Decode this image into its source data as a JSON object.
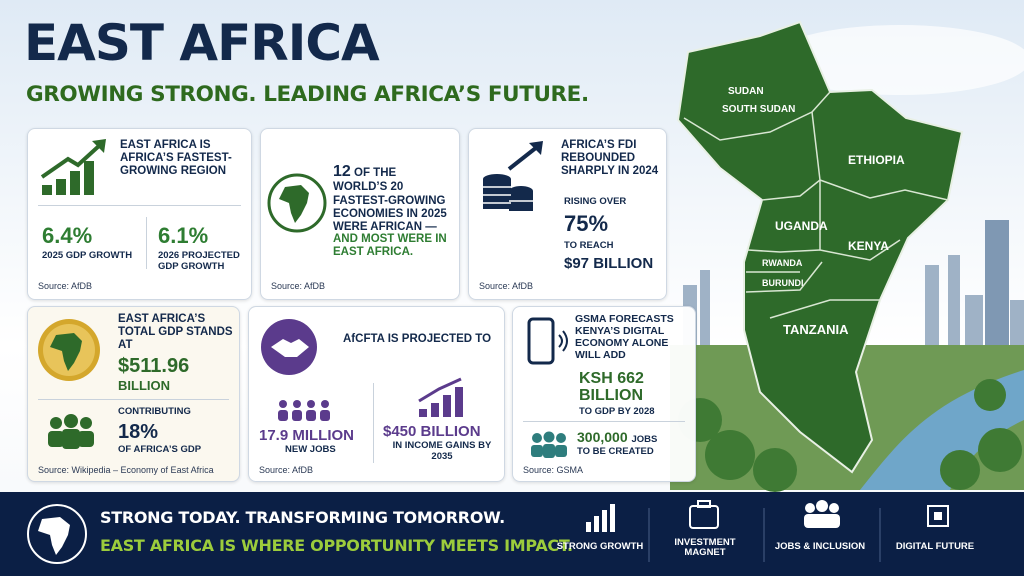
{
  "header": {
    "title": "EAST AFRICA",
    "subtitle": "GROWING STRONG. LEADING AFRICA’S FUTURE."
  },
  "cards": [
    {
      "heading": "EAST AFRICA IS AFRICA’S FASTEST-GROWING REGION",
      "stats": [
        {
          "value": "6.4%",
          "label": "2025 GDP GROWTH"
        },
        {
          "value": "6.1%",
          "label": "2026 PROJECTED GDP GROWTH"
        }
      ],
      "source": "Source: AfDB"
    },
    {
      "number": "12",
      "text": "OF THE WORLD’S 20 FASTEST-GROWING ECONOMIES IN 2025 WERE AFRICAN —",
      "highlight": "AND MOST WERE IN EAST AFRICA.",
      "source": "Source: AfDB"
    },
    {
      "heading": "AFRICA’S FDI REBOUNDED SHARPLY IN 2024",
      "lead": "RISING OVER",
      "value": "75%",
      "mid": "TO REACH",
      "amount": "$97 BILLION",
      "source": "Source: AfDB"
    },
    {
      "heading": "EAST AFRICA’S TOTAL GDP STANDS AT",
      "value": "$511.96",
      "unit": "BILLION",
      "lead": "CONTRIBUTING",
      "share": "18%",
      "share_label": "OF AFRICA’S GDP",
      "source": "Source: Wikipedia – Economy of East Africa"
    },
    {
      "heading": "AfCFTA IS PROJECTED TO",
      "stats": [
        {
          "value": "17.9 MILLION",
          "label": "NEW JOBS"
        },
        {
          "value": "$450 BILLION",
          "label": "IN INCOME GAINS BY 2035"
        }
      ],
      "source": "Source: AfDB"
    },
    {
      "heading": "GSMA FORECASTS KENYA’S DIGITAL ECONOMY ALONE WILL ADD",
      "value": "KSH 662 BILLION",
      "label": "TO GDP BY 2028",
      "jobs": "300,000",
      "jobs_unit": "JOBS",
      "jobs_label": "TO BE CREATED",
      "source": "Source: GSMA"
    }
  ],
  "map": {
    "labels": [
      "SUDAN",
      "SOUTH SUDAN",
      "ETHIOPIA",
      "UGANDA",
      "KENYA",
      "RWANDA",
      "BURUNDI",
      "TANZANIA"
    ]
  },
  "footer": {
    "line1": "STRONG TODAY. TRANSFORMING TOMORROW.",
    "line2": "EAST AFRICA IS WHERE OPPORTUNITY MEETS IMPACT.",
    "pillars": [
      "STRONG GROWTH",
      "INVESTMENT MAGNET",
      "JOBS & INCLUSION",
      "DIGITAL FUTURE"
    ]
  }
}
